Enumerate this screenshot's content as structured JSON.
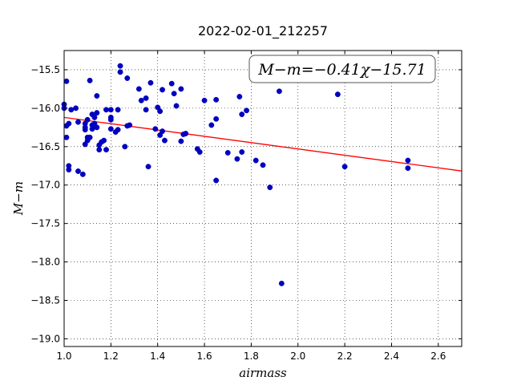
{
  "chart_data": {
    "type": "scatter",
    "title": "2022-02-01_212257",
    "xlabel": "airmass",
    "ylabel": "M−m",
    "xlim": [
      1.0,
      2.7
    ],
    "ylim": [
      -19.1,
      -15.25
    ],
    "y_inverted": true,
    "grid": true,
    "xticks": [
      "1.0",
      "1.2",
      "1.4",
      "1.6",
      "1.8",
      "2.0",
      "2.2",
      "2.4",
      "2.6"
    ],
    "xtick_values": [
      1.0,
      1.2,
      1.4,
      1.6,
      1.8,
      2.0,
      2.2,
      2.4,
      2.6
    ],
    "yticks": [
      "−15.5",
      "−16.0",
      "−16.5",
      "−17.0",
      "−17.5",
      "−18.0",
      "−18.5",
      "−19.0"
    ],
    "ytick_values": [
      -15.5,
      -16.0,
      -16.5,
      -17.0,
      -17.5,
      -18.0,
      -18.5,
      -19.0
    ],
    "annotation": "M−m=−0.41χ−15.71",
    "fit": {
      "slope": -0.41,
      "intercept": -15.71,
      "color": "#ff0000"
    },
    "marker_color": "#0000bf",
    "points": [
      {
        "x": 1.0,
        "y": -15.95
      },
      {
        "x": 1.0,
        "y": -16.0
      },
      {
        "x": 1.01,
        "y": -16.23
      },
      {
        "x": 1.01,
        "y": -16.38
      },
      {
        "x": 1.01,
        "y": -15.65
      },
      {
        "x": 1.02,
        "y": -16.2
      },
      {
        "x": 1.02,
        "y": -16.75
      },
      {
        "x": 1.02,
        "y": -16.8
      },
      {
        "x": 1.03,
        "y": -16.02
      },
      {
        "x": 1.05,
        "y": -16.0
      },
      {
        "x": 1.06,
        "y": -16.82
      },
      {
        "x": 1.06,
        "y": -16.18
      },
      {
        "x": 1.08,
        "y": -16.86
      },
      {
        "x": 1.09,
        "y": -16.2
      },
      {
        "x": 1.09,
        "y": -16.25
      },
      {
        "x": 1.09,
        "y": -16.28
      },
      {
        "x": 1.09,
        "y": -16.47
      },
      {
        "x": 1.1,
        "y": -16.38
      },
      {
        "x": 1.1,
        "y": -16.42
      },
      {
        "x": 1.1,
        "y": -16.15
      },
      {
        "x": 1.11,
        "y": -16.38
      },
      {
        "x": 1.11,
        "y": -15.64
      },
      {
        "x": 1.12,
        "y": -16.08
      },
      {
        "x": 1.12,
        "y": -16.22
      },
      {
        "x": 1.12,
        "y": -16.27
      },
      {
        "x": 1.13,
        "y": -16.12
      },
      {
        "x": 1.13,
        "y": -16.2
      },
      {
        "x": 1.14,
        "y": -16.06
      },
      {
        "x": 1.14,
        "y": -15.84
      },
      {
        "x": 1.14,
        "y": -16.25
      },
      {
        "x": 1.15,
        "y": -16.48
      },
      {
        "x": 1.15,
        "y": -16.54
      },
      {
        "x": 1.16,
        "y": -16.44
      },
      {
        "x": 1.17,
        "y": -16.42
      },
      {
        "x": 1.18,
        "y": -16.54
      },
      {
        "x": 1.18,
        "y": -16.02
      },
      {
        "x": 1.2,
        "y": -16.02
      },
      {
        "x": 1.2,
        "y": -16.12
      },
      {
        "x": 1.2,
        "y": -16.15
      },
      {
        "x": 1.2,
        "y": -16.27
      },
      {
        "x": 1.22,
        "y": -16.31
      },
      {
        "x": 1.23,
        "y": -16.28
      },
      {
        "x": 1.23,
        "y": -16.02
      },
      {
        "x": 1.24,
        "y": -15.45
      },
      {
        "x": 1.24,
        "y": -15.53
      },
      {
        "x": 1.26,
        "y": -16.5
      },
      {
        "x": 1.27,
        "y": -16.23
      },
      {
        "x": 1.27,
        "y": -15.61
      },
      {
        "x": 1.28,
        "y": -16.22
      },
      {
        "x": 1.32,
        "y": -15.75
      },
      {
        "x": 1.33,
        "y": -15.9
      },
      {
        "x": 1.35,
        "y": -15.87
      },
      {
        "x": 1.35,
        "y": -16.02
      },
      {
        "x": 1.36,
        "y": -16.76
      },
      {
        "x": 1.37,
        "y": -15.67
      },
      {
        "x": 1.39,
        "y": -16.27
      },
      {
        "x": 1.4,
        "y": -15.99
      },
      {
        "x": 1.41,
        "y": -16.35
      },
      {
        "x": 1.41,
        "y": -16.04
      },
      {
        "x": 1.42,
        "y": -16.3
      },
      {
        "x": 1.42,
        "y": -15.76
      },
      {
        "x": 1.43,
        "y": -16.42
      },
      {
        "x": 1.46,
        "y": -15.68
      },
      {
        "x": 1.47,
        "y": -15.81
      },
      {
        "x": 1.48,
        "y": -15.97
      },
      {
        "x": 1.5,
        "y": -15.75
      },
      {
        "x": 1.5,
        "y": -16.43
      },
      {
        "x": 1.51,
        "y": -16.34
      },
      {
        "x": 1.52,
        "y": -16.33
      },
      {
        "x": 1.57,
        "y": -16.53
      },
      {
        "x": 1.58,
        "y": -16.57
      },
      {
        "x": 1.6,
        "y": -15.9
      },
      {
        "x": 1.63,
        "y": -16.22
      },
      {
        "x": 1.65,
        "y": -15.89
      },
      {
        "x": 1.65,
        "y": -16.14
      },
      {
        "x": 1.65,
        "y": -16.94
      },
      {
        "x": 1.7,
        "y": -16.58
      },
      {
        "x": 1.74,
        "y": -16.66
      },
      {
        "x": 1.75,
        "y": -15.85
      },
      {
        "x": 1.76,
        "y": -16.08
      },
      {
        "x": 1.76,
        "y": -16.57
      },
      {
        "x": 1.78,
        "y": -16.03
      },
      {
        "x": 1.82,
        "y": -16.68
      },
      {
        "x": 1.85,
        "y": -16.74
      },
      {
        "x": 1.88,
        "y": -17.03
      },
      {
        "x": 1.92,
        "y": -15.78
      },
      {
        "x": 1.93,
        "y": -18.28
      },
      {
        "x": 2.17,
        "y": -15.82
      },
      {
        "x": 2.2,
        "y": -16.76
      },
      {
        "x": 2.47,
        "y": -16.68
      },
      {
        "x": 2.47,
        "y": -16.78
      }
    ]
  }
}
